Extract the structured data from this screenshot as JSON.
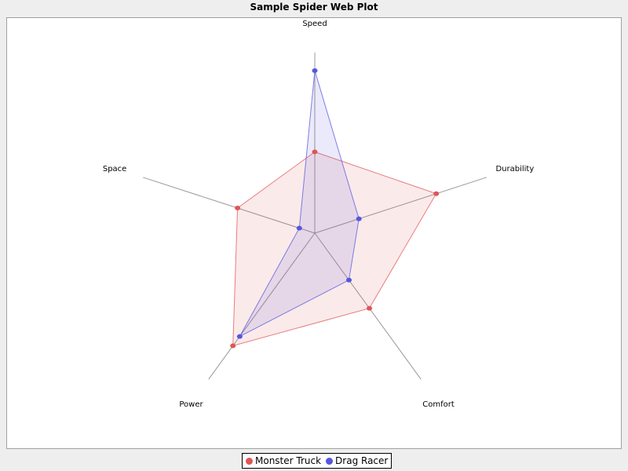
{
  "title": "Sample Spider Web Plot",
  "chart_data": {
    "type": "radar",
    "categories": [
      "Speed",
      "Durability",
      "Comfort",
      "Power",
      "Space"
    ],
    "max_value": 7,
    "series": [
      {
        "name": "Monster Truck",
        "color": "#e05555",
        "values": [
          3.5,
          5.5,
          4.0,
          6.0,
          3.5
        ]
      },
      {
        "name": "Drag Racer",
        "color": "#5555e0",
        "values": [
          7.0,
          2.0,
          2.5,
          5.5,
          0.7
        ]
      }
    ],
    "legend_position": "bottom"
  },
  "legend": {
    "items": [
      {
        "label": "Monster Truck",
        "color": "#e05555"
      },
      {
        "label": "Drag Racer",
        "color": "#5555e0"
      }
    ]
  }
}
